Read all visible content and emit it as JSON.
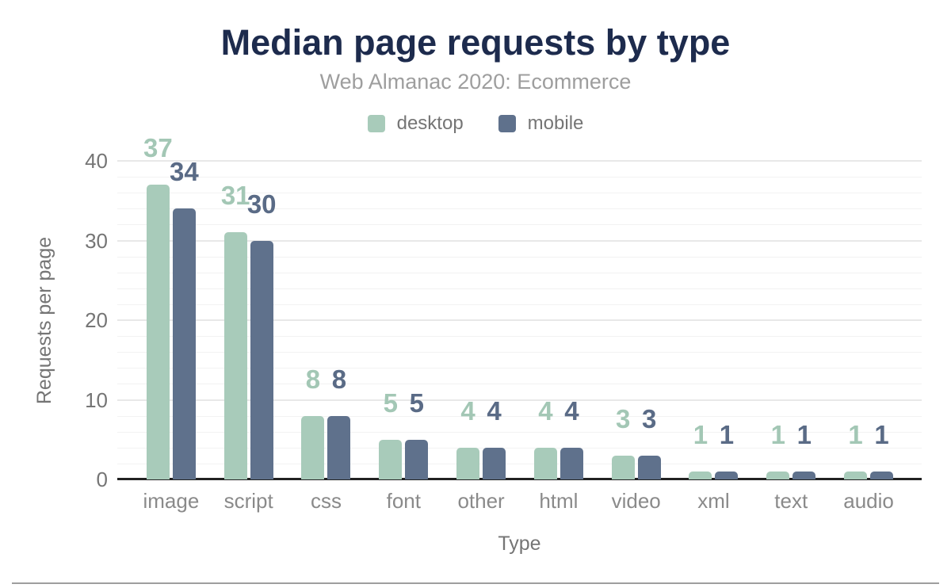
{
  "chart_data": {
    "type": "bar",
    "title": "Median page requests by type",
    "subtitle": "Web Almanac 2020: Ecommerce",
    "xlabel": "Type",
    "ylabel": "Requests per page",
    "categories": [
      "image",
      "script",
      "css",
      "font",
      "other",
      "html",
      "video",
      "xml",
      "text",
      "audio"
    ],
    "series": [
      {
        "name": "desktop",
        "color": "#a8cbba",
        "label_color": "#a3c7b5",
        "values": [
          37,
          31,
          8,
          5,
          4,
          4,
          3,
          1,
          1,
          1
        ]
      },
      {
        "name": "mobile",
        "color": "#5f718c",
        "label_color": "#5a6b86",
        "values": [
          34,
          30,
          8,
          5,
          4,
          4,
          3,
          1,
          1,
          1
        ]
      }
    ],
    "ylim": [
      0,
      40
    ],
    "yticks": [
      0,
      10,
      20,
      30,
      40
    ],
    "minor_grid_step": 2,
    "grid": true,
    "legend_position": "top"
  },
  "colors": {
    "title": "#1d2b4d",
    "subtitle": "#9e9e9e",
    "axis_text": "#757575",
    "category_text": "#8a8a8a",
    "major_grid": "#e8e8e8",
    "minor_grid": "#f2f2f2",
    "axis_line": "#222222",
    "bottom_rule": "#9e9e9e",
    "background": "#ffffff"
  }
}
